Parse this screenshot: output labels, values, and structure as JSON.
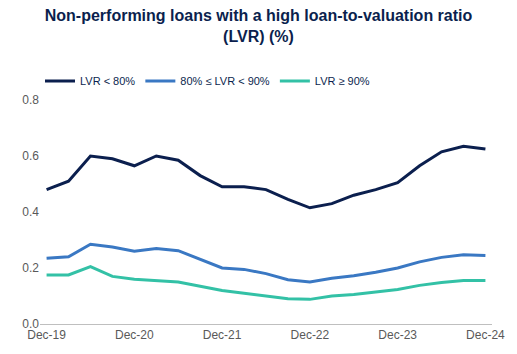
{
  "chart_data": {
    "type": "line",
    "title": "Non-performing loans with a high loan-to-valuation ratio (LVR) (%)",
    "categories": [
      "Dec-19",
      null,
      null,
      null,
      "Dec-20",
      null,
      null,
      null,
      "Dec-21",
      null,
      null,
      null,
      "Dec-22",
      null,
      null,
      null,
      "Dec-23",
      null,
      null,
      null,
      "Dec-24"
    ],
    "series": [
      {
        "name": "LVR < 80%",
        "color": "#0b1f4e",
        "values": [
          0.48,
          0.51,
          0.6,
          0.59,
          0.565,
          0.6,
          0.585,
          0.53,
          0.49,
          0.49,
          0.48,
          0.445,
          0.415,
          0.43,
          0.46,
          0.48,
          0.505,
          0.565,
          0.615,
          0.635,
          0.625
        ]
      },
      {
        "name": "80% ≤ LVR < 90%",
        "color": "#3a78c3",
        "values": [
          0.235,
          0.24,
          0.285,
          0.275,
          0.26,
          0.27,
          0.262,
          0.23,
          0.2,
          0.195,
          0.18,
          0.158,
          0.15,
          0.163,
          0.172,
          0.185,
          0.2,
          0.222,
          0.238,
          0.247,
          0.245
        ]
      },
      {
        "name": "LVR ≥ 90%",
        "color": "#33c1a6",
        "values": [
          0.175,
          0.175,
          0.205,
          0.17,
          0.16,
          0.155,
          0.15,
          0.135,
          0.12,
          0.11,
          0.1,
          0.09,
          0.088,
          0.1,
          0.105,
          0.113,
          0.123,
          0.138,
          0.148,
          0.155,
          0.155
        ]
      }
    ],
    "ylim": [
      0,
      0.8
    ],
    "yticks": [
      {
        "value": 0,
        "label": "0.0"
      },
      {
        "value": 0.2,
        "label": "0.2"
      },
      {
        "value": 0.4,
        "label": "0.4"
      },
      {
        "value": 0.6,
        "label": "0.6"
      },
      {
        "value": 0.8,
        "label": "0.8"
      }
    ],
    "grid": false,
    "legend": "top"
  }
}
